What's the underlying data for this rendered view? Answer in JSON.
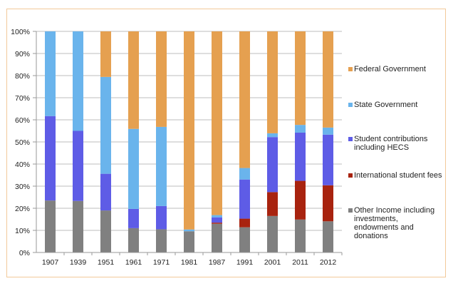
{
  "chart_data": {
    "type": "bar",
    "stacked": true,
    "percent": true,
    "title": "",
    "xlabel": "",
    "ylabel": "",
    "ylim": [
      0,
      100
    ],
    "yticks": [
      "0%",
      "10%",
      "20%",
      "30%",
      "40%",
      "50%",
      "60%",
      "70%",
      "80%",
      "90%",
      "100%"
    ],
    "grid": true,
    "legend_position": "right",
    "categories": [
      "1907",
      "1939",
      "1951",
      "1961",
      "1971",
      "1981",
      "1987",
      "1991",
      "2001",
      "2011",
      "2012"
    ],
    "series": [
      {
        "name": "Other Income including investments, endowments and donations",
        "color": "#808080",
        "values": [
          23.5,
          23.3,
          19.0,
          11.0,
          10.5,
          9.6,
          13.0,
          11.4,
          16.5,
          14.9,
          14.1
        ]
      },
      {
        "name": "International student fees",
        "color": "#a8230f",
        "values": [
          0,
          0,
          0,
          0,
          0,
          0,
          0.5,
          3.9,
          10.8,
          17.5,
          16.3
        ]
      },
      {
        "name": "Student contributions including HECS",
        "color": "#5e5ce6",
        "values": [
          38.2,
          31.7,
          16.6,
          8.7,
          10.5,
          0,
          2.4,
          17.7,
          24.9,
          21.8,
          22.9
        ]
      },
      {
        "name": "State Government",
        "color": "#6ab4ec",
        "values": [
          38.3,
          45.0,
          43.8,
          36.2,
          35.8,
          0.8,
          1.0,
          5.2,
          1.7,
          3.5,
          3.2
        ]
      },
      {
        "name": "Federal Government",
        "color": "#e5a050",
        "values": [
          0,
          0,
          20.6,
          44.1,
          43.2,
          89.6,
          83.1,
          61.8,
          46.1,
          42.3,
          43.5
        ]
      }
    ]
  },
  "legend": [
    {
      "label": "Federal Government",
      "color": "#e5a050"
    },
    {
      "label": "State Government",
      "color": "#6ab4ec"
    },
    {
      "label": "Student contributions including HECS",
      "color": "#5e5ce6"
    },
    {
      "label": "International student fees",
      "color": "#a8230f"
    },
    {
      "label": "Other Income including investments, endowments and donations",
      "color": "#808080"
    }
  ]
}
